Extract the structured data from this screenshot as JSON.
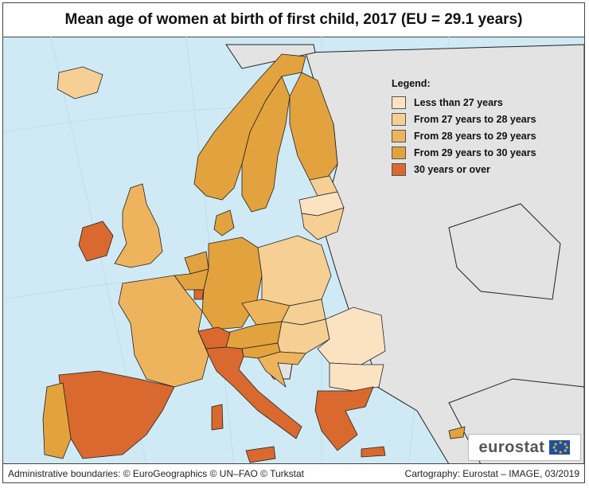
{
  "title": "Mean age of women at birth of first child, 2017 (EU = 29.1 years)",
  "legend": {
    "title": "Legend:",
    "items": [
      {
        "label": "Less than 27 years",
        "color": "#fbe3c2"
      },
      {
        "label": "From 27 years to 28 years",
        "color": "#f6cf95"
      },
      {
        "label": "From 28 years to 29 years",
        "color": "#eeb45d"
      },
      {
        "label": "From 29 years to 30 years",
        "color": "#e2a23d"
      },
      {
        "label": "30 years or over",
        "color": "#d9692e"
      }
    ]
  },
  "colors": {
    "sea": "#cfeaf5",
    "non_eu_land": "#e3e3e3",
    "border": "#222222"
  },
  "footer": {
    "left": "Administrative boundaries: © EuroGeographics © UN–FAO © Turkstat",
    "right": "Cartography: Eurostat – IMAGE, 03/2019"
  },
  "logo": {
    "text": "eurostat"
  }
}
